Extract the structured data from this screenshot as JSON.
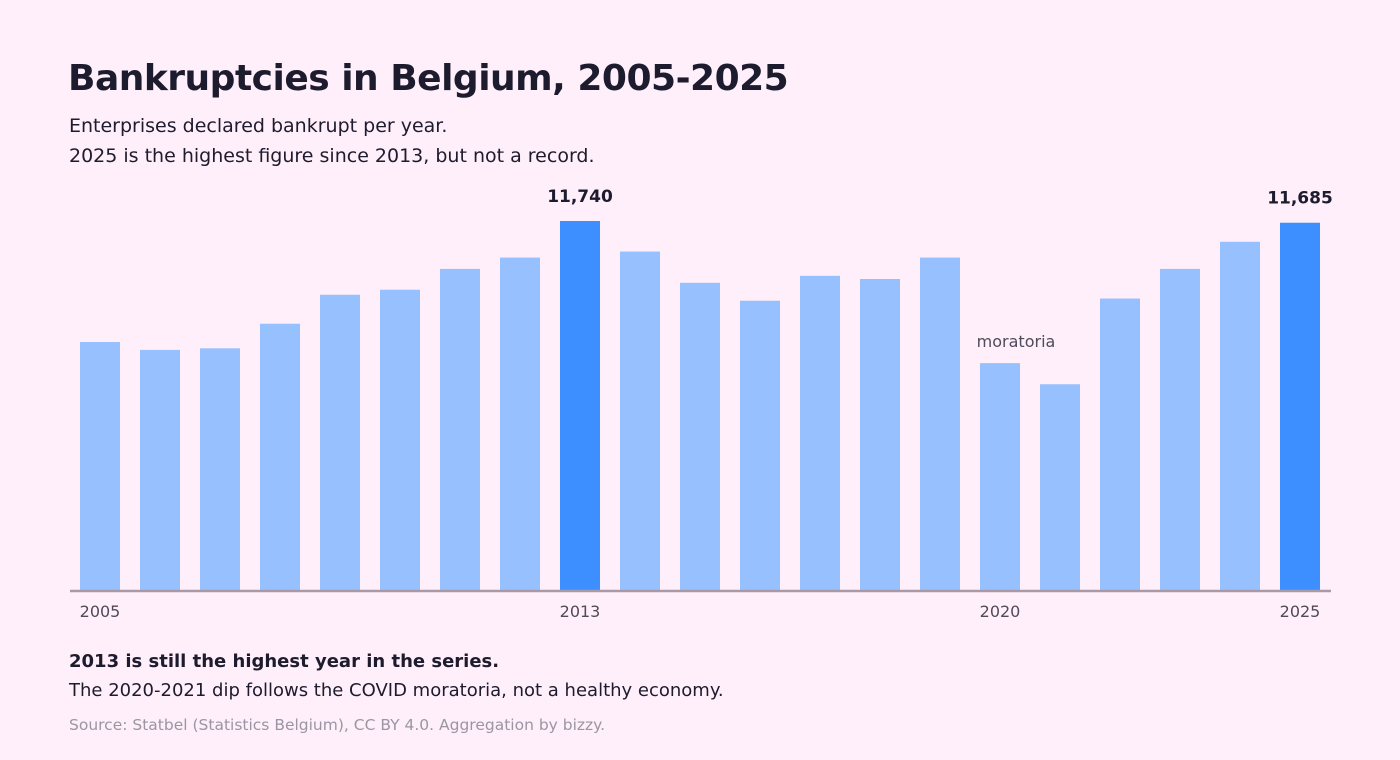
{
  "header": {
    "title": "Bankruptcies in Belgium, 2005-2025",
    "subtitle_line1": "Enterprises declared bankrupt per year.",
    "subtitle_line2": "2025 is the highest figure since 2013, but not a record."
  },
  "footer": {
    "note_bold": "2013 is still the highest year in the series.",
    "note": "The 2020-2021 dip follows the COVID moratoria, not a healthy economy.",
    "source": "Source: Statbel (Statistics Belgium), CC BY 4.0. Aggregation by bizzy."
  },
  "chart_data": {
    "type": "bar",
    "title": "Bankruptcies in Belgium, 2005-2025",
    "xlabel": "",
    "ylabel": "",
    "ylim": [
      0,
      11740
    ],
    "grid": false,
    "categories": [
      "2005",
      "2006",
      "2007",
      "2008",
      "2009",
      "2010",
      "2011",
      "2012",
      "2013",
      "2014",
      "2015",
      "2016",
      "2017",
      "2018",
      "2019",
      "2020",
      "2021",
      "2022",
      "2023",
      "2024",
      "2025"
    ],
    "values": [
      7900,
      7650,
      7700,
      8480,
      9400,
      9560,
      10220,
      10580,
      11740,
      10770,
      9780,
      9210,
      10000,
      9900,
      10580,
      7230,
      6560,
      9280,
      10220,
      11080,
      11685
    ],
    "x_tick_labels": [
      {
        "category": "2005",
        "label": "2005"
      },
      {
        "category": "2013",
        "label": "2013"
      },
      {
        "category": "2020",
        "label": "2020"
      },
      {
        "category": "2025",
        "label": "2025"
      }
    ],
    "data_labels": [
      {
        "category": "2013",
        "label": "11,740"
      },
      {
        "category": "2025",
        "label": "11,685"
      }
    ],
    "annotations": [
      {
        "category": "2020",
        "text": "moratoria"
      }
    ],
    "highlighted": [
      "2013",
      "2025"
    ],
    "colors": {
      "bar": "#96c0fe",
      "highlight": "#3d8efe",
      "axis": "#a99aa6",
      "text": "#1d1b2e",
      "annotation": "#4f4b5a",
      "tick": "#4f4b5a"
    }
  }
}
